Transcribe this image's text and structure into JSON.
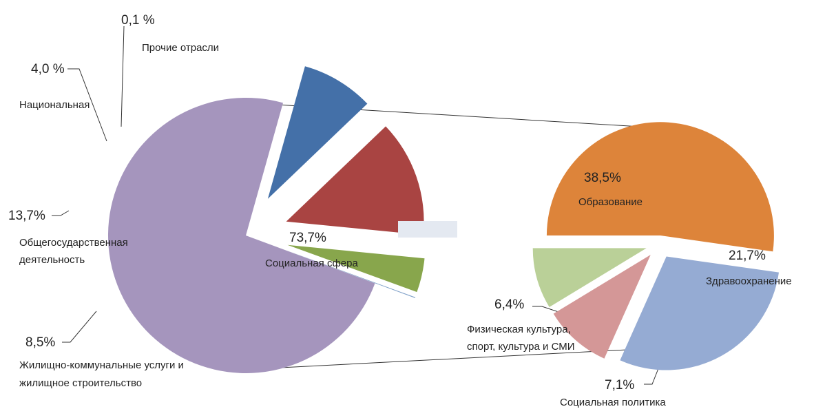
{
  "chart_data": {
    "type": "pie",
    "subtype": "pie-of-pie",
    "main": {
      "slices": [
        {
          "label": "Социальная сфера",
          "value": 73.7,
          "value_label": "73,7%",
          "color": "#a595bd"
        },
        {
          "label": "Жилищно-коммунальные услуги и жилищное строительство",
          "lines": [
            "Жилищно-коммунальные услуги и",
            "жилищное строительство"
          ],
          "value": 8.5,
          "value_label": "8,5%",
          "color": "#4470a8"
        },
        {
          "label": "Общегосударственная деятельность",
          "lines": [
            "Общегосударственная",
            "деятельность"
          ],
          "value": 13.7,
          "value_label": "13,7%",
          "color": "#a94442"
        },
        {
          "label": "Национальная",
          "value": 4.0,
          "value_label": "4,0 %",
          "color": "#88a64c"
        },
        {
          "label": "Прочие отрасли",
          "value": 0.1,
          "value_label": "0,1 %",
          "color": "#7fa0c8"
        }
      ]
    },
    "secondary": {
      "slices": [
        {
          "label": "Образование",
          "value": 38.5,
          "value_label": "38,5%",
          "color": "#dd843a"
        },
        {
          "label": "Здравоохранение",
          "value": 21.7,
          "value_label": "21,7%",
          "color": "#95abd3"
        },
        {
          "label": "Социальная политика",
          "value": 7.1,
          "value_label": "7,1%",
          "color": "#d49797"
        },
        {
          "label": "Физическая культура, спорт, культура и СМИ",
          "lines": [
            "Физическая культура,",
            "спорт, культура и СМИ"
          ],
          "value": 6.4,
          "value_label": "6,4%",
          "color": "#bad098"
        }
      ]
    },
    "connector_color": "#e4e9f1",
    "legend": "none"
  }
}
